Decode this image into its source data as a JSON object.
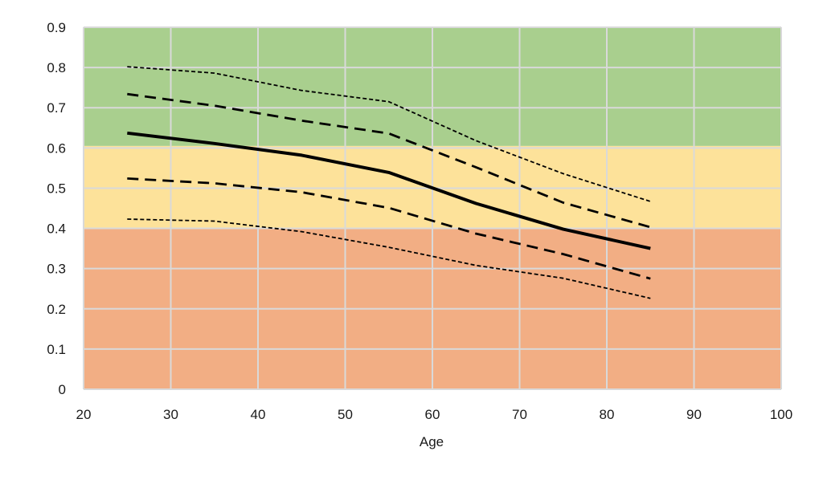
{
  "chart_data": {
    "type": "line",
    "title": "",
    "xlabel": "Age",
    "ylabel": "",
    "xlim": [
      20,
      100
    ],
    "ylim": [
      0,
      0.9
    ],
    "xticks": [
      20,
      30,
      40,
      50,
      60,
      70,
      80,
      90,
      100
    ],
    "yticks": [
      0,
      0.1,
      0.2,
      0.3,
      0.4,
      0.5,
      0.6,
      0.7,
      0.8,
      0.9
    ],
    "xtick_labels": [
      "20",
      "30",
      "40",
      "50",
      "60",
      "70",
      "80",
      "90",
      "100"
    ],
    "ytick_labels": [
      "0",
      "0.1",
      "0.2",
      "0.3",
      "0.4",
      "0.5",
      "0.6",
      "0.7",
      "0.8",
      "0.9"
    ],
    "grid": true,
    "legend": "none",
    "bands": [
      {
        "y0": 0,
        "y1": 0.4,
        "color": "#f2ae84"
      },
      {
        "y0": 0.4,
        "y1": 0.605,
        "color": "#fde29a"
      },
      {
        "y0": 0.605,
        "y1": 0.9,
        "color": "#a9cf8e"
      }
    ],
    "x": [
      25,
      35,
      45,
      55,
      65,
      75,
      85
    ],
    "series": [
      {
        "style": "dotted",
        "values": [
          0.802,
          0.786,
          0.743,
          0.715,
          0.618,
          0.536,
          0.467
        ]
      },
      {
        "style": "dashed",
        "values": [
          0.734,
          0.705,
          0.668,
          0.636,
          0.552,
          0.464,
          0.403
        ]
      },
      {
        "style": "solid",
        "values": [
          0.637,
          0.611,
          0.582,
          0.539,
          0.462,
          0.398,
          0.35
        ]
      },
      {
        "style": "dashed",
        "values": [
          0.524,
          0.512,
          0.49,
          0.451,
          0.387,
          0.336,
          0.275
        ]
      },
      {
        "style": "dotted",
        "values": [
          0.423,
          0.418,
          0.392,
          0.353,
          0.308,
          0.276,
          0.226
        ]
      }
    ]
  }
}
